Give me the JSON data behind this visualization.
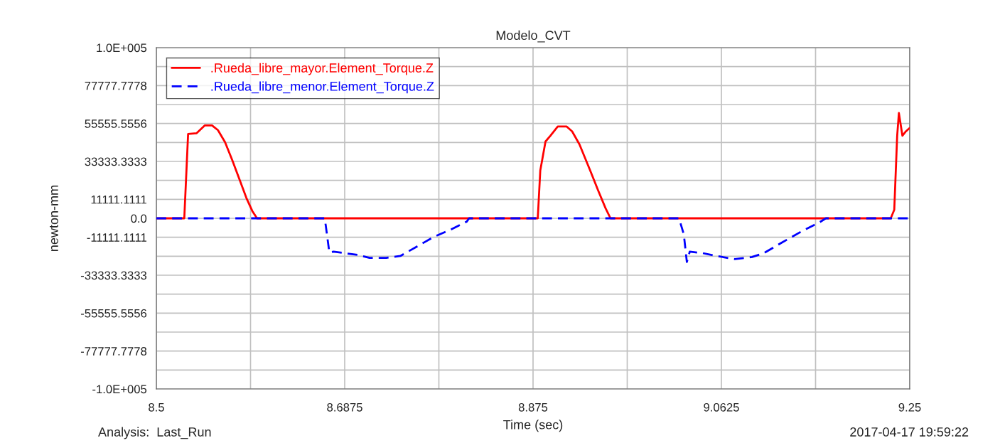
{
  "chart_data": {
    "type": "line",
    "title": "Modelo_CVT",
    "xlabel": "Time (sec)",
    "ylabel": "newton-mm",
    "annotations": [
      "Analysis:  Last_Run",
      "2017-04-17 19:59:22"
    ],
    "xlim": [
      8.5,
      9.25
    ],
    "xticks": [
      8.5,
      {
        "value": 8.59375,
        "label": null
      },
      8.6875,
      {
        "value": 8.78125,
        "label": null
      },
      8.875,
      {
        "value": 8.96875,
        "label": null
      },
      9.0625,
      {
        "value": 9.15625,
        "label": null
      },
      9.25
    ],
    "ylim": [
      -100000,
      100000
    ],
    "yticks": [
      {
        "value": -100000,
        "label": "-1.0E+005"
      },
      {
        "value": -88888.8889,
        "label": null
      },
      -77777.7778,
      {
        "value": -66666.6667,
        "label": null
      },
      -55555.5556,
      {
        "value": -44444.4444,
        "label": null
      },
      -33333.3333,
      {
        "value": -22222.2222,
        "label": null
      },
      -11111.1111,
      {
        "value": 0,
        "label": "0.0"
      },
      11111.1111,
      {
        "value": 22222.2222,
        "label": null
      },
      33333.3333,
      {
        "value": 44444.4444,
        "label": null
      },
      55555.5556,
      {
        "value": 66666.6667,
        "label": null
      },
      77777.7778,
      {
        "value": 88888.8889,
        "label": null
      },
      {
        "value": 100000,
        "label": "1.0E+005"
      }
    ],
    "grid": true,
    "legend": "top left",
    "series": [
      {
        "name": ".Rueda_libre_mayor.Element_Torque.Z",
        "color": "#ff0000",
        "line_style": "solid",
        "x": [
          8.5,
          8.5278,
          8.5316,
          8.5401,
          8.5483,
          8.5554,
          8.5613,
          8.5684,
          8.5755,
          8.5826,
          8.5896,
          8.5955,
          8.6002,
          8.8797,
          8.8822,
          8.8874,
          8.8923,
          8.8996,
          8.9083,
          8.9139,
          8.9212,
          8.9313,
          8.94,
          8.9472,
          8.9521,
          9.2311,
          9.2346,
          9.2375,
          9.2392,
          9.2427,
          9.2462,
          9.2497
        ],
        "values": [
          0,
          0,
          49450,
          49870,
          54460,
          54460,
          51670,
          44580,
          34170,
          23040,
          11940,
          4310,
          0,
          0,
          28000,
          45000,
          48420,
          53830,
          53830,
          50960,
          43330,
          28830,
          16080,
          5880,
          0,
          0,
          5040,
          48420,
          61670,
          48420,
          50960,
          52800
        ]
      },
      {
        "name": ".Rueda_libre_menor.Element_Torque.Z",
        "color": "#0000ff",
        "line_style": "dashed",
        "x": [
          8.5,
          8.6675,
          8.6686,
          8.6722,
          8.6764,
          8.7005,
          8.7123,
          8.7288,
          8.7429,
          8.7594,
          8.7759,
          8.7924,
          8.809,
          8.8113,
          9.0203,
          9.0251,
          9.0281,
          9.031,
          9.044,
          9.0584,
          9.0757,
          9.0931,
          9.1046,
          9.1219,
          9.1422,
          9.1594,
          9.1665,
          9.25
        ],
        "values": [
          0,
          0,
          -4030,
          -20000,
          -19580,
          -21390,
          -23190,
          -23190,
          -22080,
          -16530,
          -10970,
          -6810,
          -1940,
          0,
          0,
          -9420,
          -25580,
          -19580,
          -20400,
          -22170,
          -23870,
          -22670,
          -20460,
          -14500,
          -7710,
          -2625,
          0,
          0
        ]
      }
    ]
  }
}
